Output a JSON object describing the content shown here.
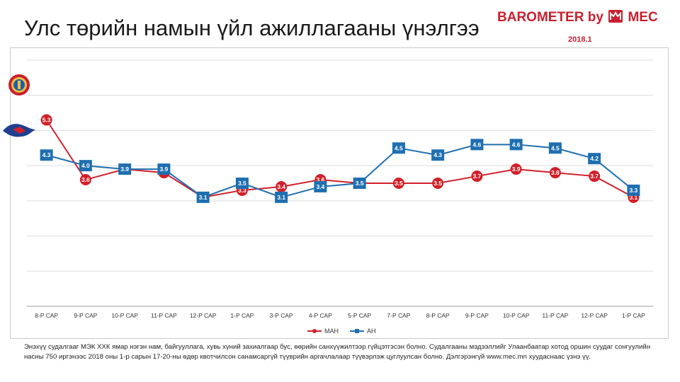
{
  "title": "Улс төрийн намын үйл ажиллагааны үнэлгээ",
  "brand": {
    "name": "BAROMETER by",
    "suffix": "MEC",
    "date": "2018.1"
  },
  "footnote": "Энэхүү судалгааг МЭК ХХК ямар нэгэн нам, байгууллага, хувь хүний захиалгаар бус, өөрийн санхүүжилтээр гүйцэтгэсэн болно. Судалгааны мэдээллийг Улаанбаатар хотод оршин суудаг сонгуулийн насны 750 иргэнээс 2018 оны 1-р сарын 17-20-ны өдөр квотчилсон санамсаргүй түүврийн аргачлалаар түүвэрлэж цуглуулсан болно. Дэлгэрэнгүй www.mec.mn хуудаснаас үзнэ үү.",
  "colors": {
    "mah": "#d0202a",
    "ah": "#1f6fb0"
  },
  "icons": {
    "mah": "mah-party-emblem-icon",
    "ah": "ah-party-emblem-icon"
  },
  "chart_data": {
    "type": "line",
    "categories": [
      "8-Р САР",
      "9-Р САР",
      "10-Р САР",
      "11-Р САР",
      "12-Р САР",
      "1-Р САР",
      "3-Р САР",
      "4-Р САР",
      "5-Р САР",
      "7-Р САР",
      "8-Р САР",
      "9-Р САР",
      "10-Р САР",
      "11-Р САР",
      "12-Р САР",
      "1-Р САР"
    ],
    "series": [
      {
        "name": "МАН",
        "color": "#d0202a",
        "marker": "circle",
        "values": [
          5.3,
          3.6,
          3.9,
          3.8,
          3.1,
          3.3,
          3.4,
          3.6,
          3.5,
          3.5,
          3.5,
          3.7,
          3.9,
          3.8,
          3.7,
          3.1
        ],
        "labels": [
          "5.3",
          "3.6",
          "",
          "",
          "",
          "3.3",
          "3.4",
          "3.6",
          "",
          "3.5",
          "3.5",
          "3.7",
          "3.9",
          "3.8",
          "3.7",
          "3.1"
        ]
      },
      {
        "name": "АН",
        "color": "#1f6fb0",
        "marker": "square",
        "values": [
          4.3,
          4.0,
          3.9,
          3.9,
          3.1,
          3.5,
          3.1,
          3.4,
          3.5,
          4.5,
          4.3,
          4.6,
          4.6,
          4.5,
          4.2,
          3.3
        ],
        "labels": [
          "4.3",
          "4.0",
          "3.9",
          "3.9",
          "3.1",
          "3.5",
          "3.1",
          "3.4",
          "3.5",
          "4.5",
          "4.3",
          "4.6",
          "4.6",
          "4.5",
          "4.2",
          "3.3"
        ]
      }
    ],
    "ylim": [
      0,
      7
    ],
    "grid": true,
    "y_tick_labels": false,
    "legend_position": "bottom"
  }
}
